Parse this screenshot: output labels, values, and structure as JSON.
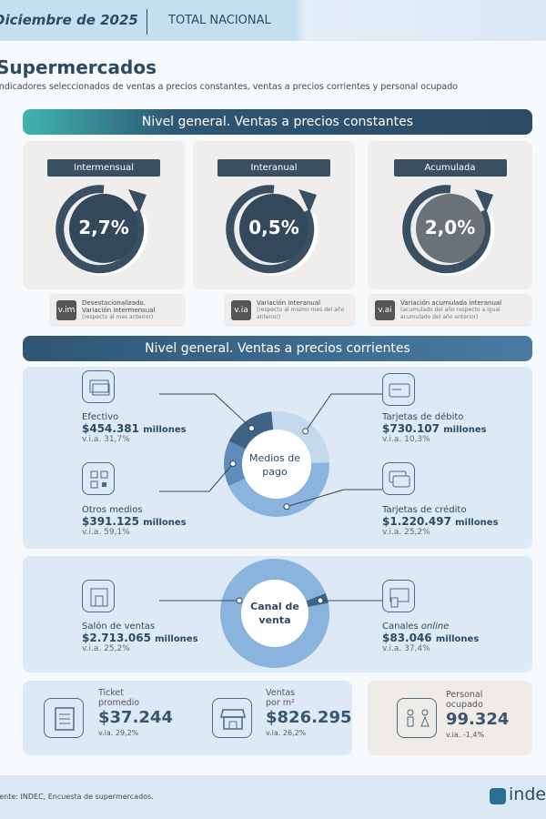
{
  "header": {
    "date": "Diciembre de 2025",
    "scope": "TOTAL NACIONAL"
  },
  "title": "Supermercados",
  "subtitle": "Indicadores seleccionados de ventas a precios constantes, ventas a precios corrientes y personal ocupado",
  "section1": {
    "title": "Nivel general. Ventas a precios constantes",
    "cards": [
      {
        "label": "Intermensual",
        "value": "2,7%"
      },
      {
        "label": "Interanual",
        "value": "0,5%"
      },
      {
        "label": "Acumulada",
        "value": "2,0%"
      }
    ],
    "notes": [
      {
        "badge": "v.im",
        "title": "Desestacionalizado.",
        "title2": "Variación intermensual",
        "detail": "(respecto al mes anterior)"
      },
      {
        "badge": "v.ia",
        "title": "Variación interanual",
        "title2": "",
        "detail": "(respecto al mismo mes del año anterior)"
      },
      {
        "badge": "v.ai",
        "title": "Variación acumulada interanual",
        "title2": "",
        "detail": "(acumulado del año respecto a igual acumulado del año anterior)"
      }
    ]
  },
  "section2": {
    "title": "Nivel general. Ventas a precios corrientes",
    "medios": {
      "center": "Medios de pago",
      "items": [
        {
          "label": "Efectivo",
          "amount": "$454.381",
          "unit": "millones",
          "via": "v.i.a. 31,7%",
          "value": 454381,
          "color": "#3e6385"
        },
        {
          "label": "Tarjetas de débito",
          "amount": "$730.107",
          "unit": "millones",
          "via": "v.i.a. 10,3%",
          "value": 730107,
          "color": "#c4d9ee"
        },
        {
          "label": "Tarjetas de crédito",
          "amount": "$1.220.497",
          "unit": "millones",
          "via": "v.i.a. 25,2%",
          "value": 1220497,
          "color": "#8ab3de"
        },
        {
          "label": "Otros medios",
          "amount": "$391.125",
          "unit": "millones",
          "via": "v.i.a. 59,1%",
          "value": 391125,
          "color": "#5f8cba"
        }
      ]
    },
    "canal": {
      "center": "Canal de venta",
      "items": [
        {
          "label": "Salón de ventas",
          "amount": "$2.713.065",
          "unit": "millones",
          "via": "v.i.a. 25,2%",
          "value": 2713065,
          "color": "#8ab3de"
        },
        {
          "label": "Canales",
          "label_em": "online",
          "amount": "$83.046",
          "unit": "millones",
          "via": "v.i.a. 37,4%",
          "value": 83046,
          "color": "#3e6385"
        }
      ]
    }
  },
  "stats": [
    {
      "label1": "Ticket",
      "label2": "promedio",
      "value": "$37.244",
      "via": "v.ia. 29,2%"
    },
    {
      "label1": "Ventas",
      "label2": "por m²",
      "value": "$826.295",
      "via": "v.ia. 26,2%"
    },
    {
      "label1": "Personal",
      "label2": "ocupado",
      "value": "99.324",
      "via": "v.ia. -1,4%"
    }
  ],
  "footer": {
    "source": "Fuente: INDEC, Encuesta de supermercados.",
    "logo": "indec"
  }
}
